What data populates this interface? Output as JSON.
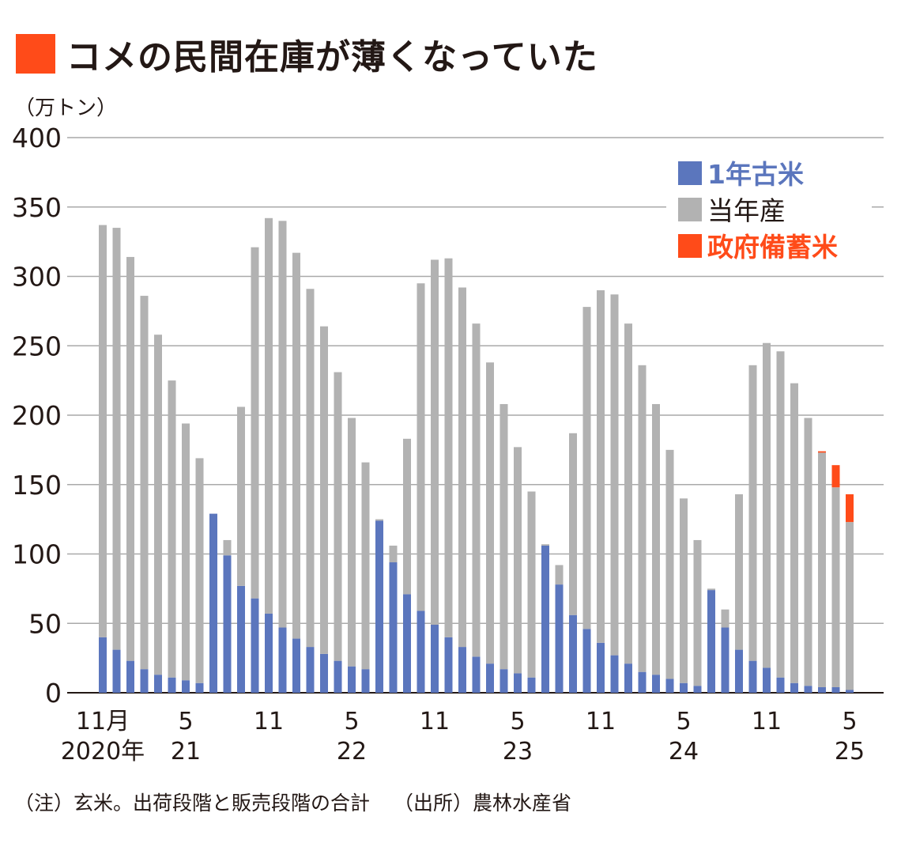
{
  "title": "コメの民間在庫が薄くなっていた",
  "unit": "（万トン）",
  "note": "（注）玄米。出荷段階と販売段階の合計",
  "source": "（出所）農林水産省",
  "colors": {
    "old_rice": "#5b76bd",
    "current": "#b2b2b2",
    "government": "#ff4b19",
    "grid": "#a9a9a9",
    "text": "#231815"
  },
  "chart_data": {
    "type": "bar",
    "stacked": true,
    "ylim": [
      0,
      400
    ],
    "yticks": [
      "400",
      "350",
      "300",
      "250",
      "200",
      "150",
      "100",
      "50",
      "0"
    ],
    "xtick_labels": [
      {
        "index": 0,
        "lines": [
          "11月",
          "2020年"
        ]
      },
      {
        "index": 6,
        "lines": [
          "5",
          "21"
        ]
      },
      {
        "index": 12,
        "lines": [
          "11",
          ""
        ]
      },
      {
        "index": 18,
        "lines": [
          "5",
          "22"
        ]
      },
      {
        "index": 24,
        "lines": [
          "11",
          ""
        ]
      },
      {
        "index": 30,
        "lines": [
          "5",
          "23"
        ]
      },
      {
        "index": 36,
        "lines": [
          "11",
          ""
        ]
      },
      {
        "index": 42,
        "lines": [
          "5",
          "24"
        ]
      },
      {
        "index": 48,
        "lines": [
          "11",
          ""
        ]
      },
      {
        "index": 54,
        "lines": [
          "5",
          "25"
        ]
      }
    ],
    "series": [
      {
        "name": "1年古米",
        "color": "#5b76bd",
        "values": [
          40,
          31,
          23,
          17,
          13,
          11,
          9,
          7,
          129,
          99,
          77,
          68,
          57,
          47,
          39,
          33,
          28,
          23,
          19,
          17,
          124,
          94,
          71,
          59,
          49,
          40,
          33,
          26,
          21,
          17,
          14,
          11,
          106,
          78,
          56,
          46,
          36,
          27,
          21,
          15,
          13,
          10,
          7,
          5,
          74,
          47,
          31,
          23,
          18,
          11,
          7,
          5,
          4,
          4,
          2
        ]
      },
      {
        "name": "当年産",
        "color": "#b2b2b2",
        "values": [
          297,
          304,
          291,
          269,
          245,
          214,
          185,
          162,
          0,
          11,
          129,
          253,
          285,
          293,
          278,
          258,
          236,
          208,
          179,
          149,
          1,
          12,
          112,
          236,
          263,
          273,
          259,
          240,
          217,
          191,
          163,
          134,
          1,
          14,
          131,
          232,
          254,
          260,
          245,
          221,
          195,
          165,
          133,
          105,
          1,
          13,
          112,
          213,
          234,
          235,
          216,
          193,
          169,
          144,
          121
        ]
      },
      {
        "name": "政府備蓄米",
        "color": "#ff4b19",
        "values": [
          0,
          0,
          0,
          0,
          0,
          0,
          0,
          0,
          0,
          0,
          0,
          0,
          0,
          0,
          0,
          0,
          0,
          0,
          0,
          0,
          0,
          0,
          0,
          0,
          0,
          0,
          0,
          0,
          0,
          0,
          0,
          0,
          0,
          0,
          0,
          0,
          0,
          0,
          0,
          0,
          0,
          0,
          0,
          0,
          0,
          0,
          0,
          0,
          0,
          0,
          0,
          0,
          1,
          16,
          20
        ]
      }
    ],
    "legend": {
      "placement": "top-right",
      "entries": [
        "1年古米",
        "当年産",
        "政府備蓄米"
      ]
    },
    "grid": true
  }
}
